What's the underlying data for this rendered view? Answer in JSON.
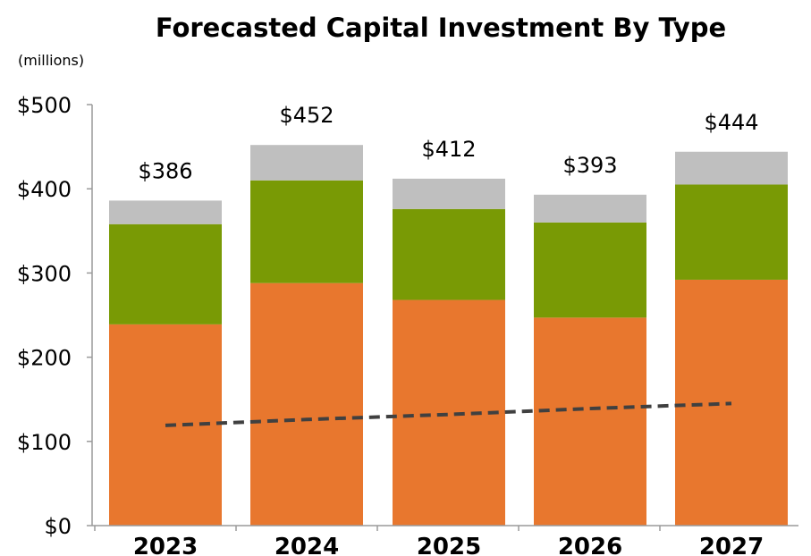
{
  "chart_data": {
    "type": "bar",
    "stacked": true,
    "title": "Forecasted Capital Investment By Type",
    "units_label": "(millions)",
    "categories": [
      "2023",
      "2024",
      "2025",
      "2026",
      "2027"
    ],
    "ylim": [
      0,
      500
    ],
    "yticks": [
      0,
      100,
      200,
      300,
      400,
      500
    ],
    "ytick_labels": [
      "$0",
      "$100",
      "$200",
      "$300",
      "$400",
      "$500"
    ],
    "grid": false,
    "series": [
      {
        "values": [
          239,
          288,
          268,
          247,
          292
        ],
        "color": "#E8772E"
      },
      {
        "values": [
          119,
          122,
          108,
          113,
          113
        ],
        "color": "#799A05"
      },
      {
        "values": [
          28,
          42,
          36,
          33,
          39
        ],
        "color": "#BFBFBF"
      }
    ],
    "totals": [
      386,
      452,
      412,
      393,
      444
    ],
    "total_labels": [
      "$386",
      "$452",
      "$412",
      "$393",
      "$444"
    ],
    "trendline": {
      "style": "dashed",
      "color": "#404040",
      "values": [
        119,
        126,
        132,
        139,
        145
      ]
    }
  }
}
